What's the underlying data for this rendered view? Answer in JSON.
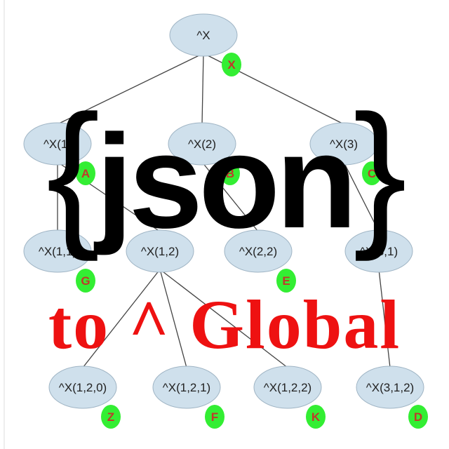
{
  "tree": {
    "root": {
      "label": "^X",
      "badge": "X"
    },
    "level1": [
      {
        "label": "^X(1)",
        "badge": "A"
      },
      {
        "label": "^X(2)",
        "badge": "B"
      },
      {
        "label": "^X(3)",
        "badge": "C"
      }
    ],
    "level2": [
      {
        "label": "^X(1,1)",
        "badge": "G"
      },
      {
        "label": "^X(1,2)",
        "badge": ""
      },
      {
        "label": "^X(2,2)",
        "badge": "E"
      },
      {
        "label": "^X(3,1)",
        "badge": ""
      }
    ],
    "level3": [
      {
        "label": "^X(1,2,0)",
        "badge": "Z"
      },
      {
        "label": "^X(1,2,1)",
        "badge": "F"
      },
      {
        "label": "^X(1,2,2)",
        "badge": "K"
      },
      {
        "label": "^X(3,1,2)",
        "badge": "D"
      }
    ]
  },
  "overlay": {
    "brace_open": "{",
    "json_word": "json",
    "brace_close": "}",
    "subtitle": "to ^ Global"
  },
  "colors": {
    "node_fill": "#cfe0ec",
    "node_stroke": "#9fb4c4",
    "badge_fill": "#33ee33",
    "badge_text": "#c0392b",
    "edge": "#444444",
    "json_text": "#000000",
    "subtitle_text": "#ee1111"
  }
}
